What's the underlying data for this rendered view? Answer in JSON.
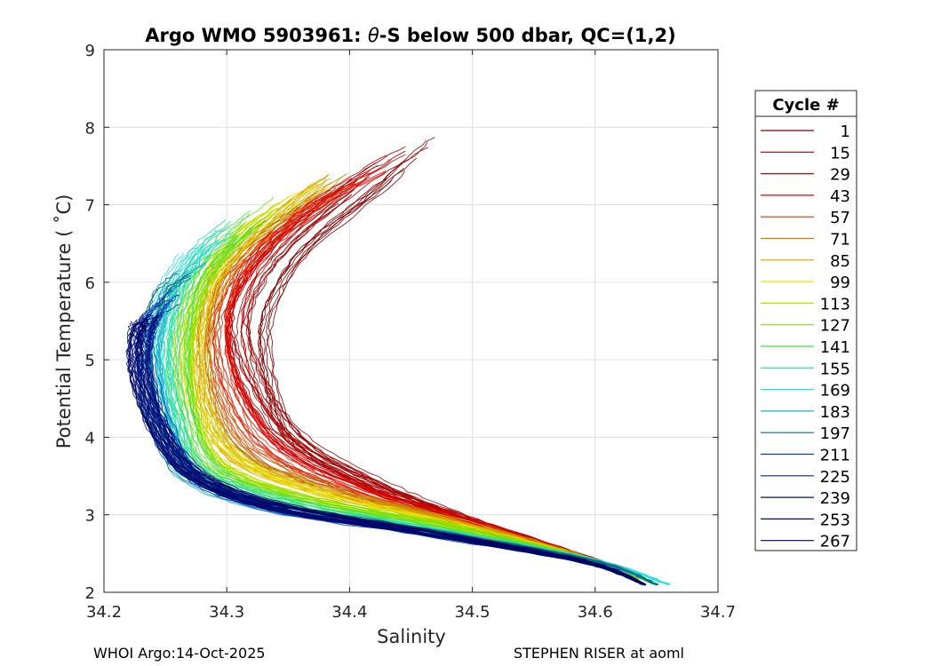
{
  "chart_data": {
    "type": "line",
    "title_prefix": "Argo WMO 5903961: ",
    "title_theta": "θ",
    "title_suffix": "-S below 500 dbar,  QC=(1,2)",
    "xlabel": "Salinity",
    "ylabel": "Potential Temperature ( ˚C)",
    "xlim": [
      34.2,
      34.7
    ],
    "ylim": [
      2,
      9
    ],
    "xticks": [
      34.2,
      34.3,
      34.4,
      34.5,
      34.6,
      34.7
    ],
    "xtick_labels": [
      "34.2",
      "34.3",
      "34.4",
      "34.5",
      "34.6",
      "34.7"
    ],
    "yticks": [
      2,
      3,
      4,
      5,
      6,
      7,
      8,
      9
    ],
    "ytick_labels": [
      "2",
      "3",
      "4",
      "5",
      "6",
      "7",
      "8",
      "9"
    ],
    "grid": true,
    "legend": {
      "title": "Cycle #",
      "placement": "outside-right",
      "entries": [
        {
          "label": "1",
          "color": "#800000"
        },
        {
          "label": "15",
          "color": "#a00000"
        },
        {
          "label": "29",
          "color": "#c00000"
        },
        {
          "label": "43",
          "color": "#e00000"
        },
        {
          "label": "57",
          "color": "#e03000"
        },
        {
          "label": "71",
          "color": "#c08000"
        },
        {
          "label": "85",
          "color": "#d8a000"
        },
        {
          "label": "99",
          "color": "#e8e000"
        },
        {
          "label": "113",
          "color": "#c0e000"
        },
        {
          "label": "127",
          "color": "#80e000"
        },
        {
          "label": "141",
          "color": "#40e040"
        },
        {
          "label": "155",
          "color": "#20e0a0"
        },
        {
          "label": "169",
          "color": "#20e0e0"
        },
        {
          "label": "183",
          "color": "#20b0d0"
        },
        {
          "label": "197",
          "color": "#007080"
        },
        {
          "label": "211",
          "color": "#0040c0"
        },
        {
          "label": "225",
          "color": "#0020a0"
        },
        {
          "label": "239",
          "color": "#001080"
        },
        {
          "label": "253",
          "color": "#001070"
        },
        {
          "label": "267",
          "color": "#000060"
        }
      ]
    },
    "series": [
      {
        "name": "1",
        "color": "#800000",
        "s": [
          34.64,
          34.59,
          34.49,
          34.41,
          34.35,
          34.33,
          34.33,
          34.36,
          34.42,
          34.47
        ],
        "t": [
          2.1,
          2.45,
          2.95,
          3.4,
          4.0,
          4.8,
          5.6,
          6.4,
          7.2,
          7.9
        ]
      },
      {
        "name": "15",
        "color": "#a00000",
        "s": [
          34.64,
          34.6,
          34.5,
          34.42,
          34.355,
          34.32,
          34.31,
          34.34,
          34.4,
          34.46
        ],
        "t": [
          2.1,
          2.4,
          2.9,
          3.4,
          4.0,
          4.8,
          5.6,
          6.4,
          7.2,
          7.8
        ]
      },
      {
        "name": "29",
        "color": "#c00000",
        "s": [
          34.64,
          34.6,
          34.5,
          34.42,
          34.35,
          34.315,
          34.305,
          34.33,
          34.38,
          34.44
        ],
        "t": [
          2.1,
          2.4,
          2.9,
          3.35,
          3.9,
          4.7,
          5.6,
          6.4,
          7.1,
          7.7
        ]
      },
      {
        "name": "43",
        "color": "#e00000",
        "s": [
          34.64,
          34.6,
          34.5,
          34.41,
          34.34,
          34.305,
          34.295,
          34.32,
          34.37,
          34.43
        ],
        "t": [
          2.1,
          2.4,
          2.9,
          3.3,
          3.85,
          4.6,
          5.5,
          6.3,
          7.0,
          7.5
        ]
      },
      {
        "name": "57",
        "color": "#e03000",
        "s": [
          34.64,
          34.6,
          34.49,
          34.4,
          34.33,
          34.3,
          34.29,
          34.31,
          34.36,
          34.41
        ],
        "t": [
          2.1,
          2.4,
          2.9,
          3.3,
          3.8,
          4.5,
          5.4,
          6.2,
          6.9,
          7.4
        ]
      },
      {
        "name": "71",
        "color": "#c08000",
        "s": [
          34.64,
          34.6,
          34.49,
          34.39,
          34.32,
          34.29,
          34.285,
          34.3,
          34.35,
          34.4
        ],
        "t": [
          2.1,
          2.4,
          2.9,
          3.3,
          3.75,
          4.5,
          5.4,
          6.2,
          6.9,
          7.45
        ]
      },
      {
        "name": "85",
        "color": "#d8a000",
        "s": [
          34.65,
          34.6,
          34.49,
          34.39,
          34.31,
          34.285,
          34.28,
          34.3,
          34.34,
          34.39
        ],
        "t": [
          2.1,
          2.4,
          2.9,
          3.25,
          3.7,
          4.4,
          5.3,
          6.1,
          6.8,
          7.4
        ]
      },
      {
        "name": "99",
        "color": "#e8e000",
        "s": [
          34.65,
          34.6,
          34.49,
          34.38,
          34.31,
          34.28,
          34.275,
          34.29,
          34.33,
          34.38
        ],
        "t": [
          2.1,
          2.4,
          2.85,
          3.25,
          3.7,
          4.4,
          5.3,
          6.1,
          6.8,
          7.3
        ]
      },
      {
        "name": "113",
        "color": "#c0e000",
        "s": [
          34.65,
          34.6,
          34.48,
          34.37,
          34.3,
          34.275,
          34.27,
          34.285,
          34.32,
          34.37
        ],
        "t": [
          2.1,
          2.4,
          2.85,
          3.2,
          3.65,
          4.35,
          5.2,
          6.0,
          6.7,
          7.2
        ]
      },
      {
        "name": "127",
        "color": "#80e000",
        "s": [
          34.65,
          34.6,
          34.48,
          34.36,
          34.29,
          34.27,
          34.265,
          34.28,
          34.31,
          34.35
        ],
        "t": [
          2.1,
          2.4,
          2.85,
          3.2,
          3.6,
          4.3,
          5.2,
          6.0,
          6.6,
          7.1
        ]
      },
      {
        "name": "141",
        "color": "#40e040",
        "s": [
          34.65,
          34.6,
          34.47,
          34.35,
          34.285,
          34.265,
          34.26,
          34.27,
          34.3,
          34.33
        ],
        "t": [
          2.1,
          2.4,
          2.8,
          3.15,
          3.6,
          4.3,
          5.1,
          5.9,
          6.5,
          6.9
        ]
      },
      {
        "name": "155",
        "color": "#20e0a0",
        "s": [
          34.65,
          34.6,
          34.47,
          34.35,
          34.28,
          34.26,
          34.25,
          34.26,
          34.28,
          34.31
        ],
        "t": [
          2.1,
          2.4,
          2.8,
          3.15,
          3.55,
          4.25,
          5.1,
          5.8,
          6.4,
          6.8
        ]
      },
      {
        "name": "169",
        "color": "#20e0e0",
        "s": [
          34.66,
          34.6,
          34.46,
          34.34,
          34.275,
          34.255,
          34.245,
          34.25,
          34.27,
          34.3
        ],
        "t": [
          2.1,
          2.4,
          2.8,
          3.1,
          3.5,
          4.2,
          5.0,
          5.7,
          6.3,
          6.6
        ]
      },
      {
        "name": "183",
        "color": "#20b0d0",
        "s": [
          34.65,
          34.6,
          34.46,
          34.34,
          34.27,
          34.25,
          34.24,
          34.245,
          34.26,
          34.28
        ],
        "t": [
          2.1,
          2.4,
          2.8,
          3.1,
          3.5,
          4.15,
          5.0,
          5.6,
          6.1,
          6.3
        ]
      },
      {
        "name": "197",
        "color": "#007080",
        "s": [
          34.65,
          34.6,
          34.46,
          34.34,
          34.27,
          34.245,
          34.235,
          34.24,
          34.25,
          34.27
        ],
        "t": [
          2.1,
          2.4,
          2.8,
          3.1,
          3.5,
          4.1,
          4.9,
          5.5,
          5.9,
          6.1
        ]
      },
      {
        "name": "211",
        "color": "#0040c0",
        "s": [
          34.64,
          34.59,
          34.45,
          34.34,
          34.275,
          34.25,
          34.235,
          34.235,
          34.245,
          34.26
        ],
        "t": [
          2.1,
          2.4,
          2.8,
          3.1,
          3.5,
          4.1,
          4.9,
          5.4,
          5.7,
          5.9
        ]
      },
      {
        "name": "225",
        "color": "#0020a0",
        "s": [
          34.64,
          34.59,
          34.45,
          34.34,
          34.275,
          34.245,
          34.232,
          34.232,
          34.24,
          34.255
        ],
        "t": [
          2.1,
          2.4,
          2.8,
          3.1,
          3.5,
          4.1,
          4.85,
          5.3,
          5.6,
          5.75
        ]
      },
      {
        "name": "239",
        "color": "#001080",
        "s": [
          34.64,
          34.59,
          34.45,
          34.34,
          34.275,
          34.245,
          34.23,
          34.23,
          34.235,
          34.25
        ],
        "t": [
          2.1,
          2.4,
          2.8,
          3.1,
          3.5,
          4.1,
          4.8,
          5.25,
          5.5,
          5.6
        ]
      },
      {
        "name": "253",
        "color": "#001070",
        "s": [
          34.64,
          34.59,
          34.45,
          34.34,
          34.275,
          34.245,
          34.23,
          34.228,
          34.232,
          34.24
        ],
        "t": [
          2.1,
          2.4,
          2.8,
          3.1,
          3.5,
          4.1,
          4.75,
          5.2,
          5.45,
          5.55
        ]
      },
      {
        "name": "267",
        "color": "#000060",
        "s": [
          34.64,
          34.59,
          34.45,
          34.34,
          34.275,
          34.245,
          34.23,
          34.228,
          34.232,
          34.24
        ],
        "t": [
          2.1,
          2.4,
          2.8,
          3.1,
          3.5,
          4.1,
          4.75,
          5.2,
          5.45,
          5.55
        ]
      }
    ]
  },
  "footer": {
    "left": "WHOI Argo:14-Oct-2025",
    "right": "STEPHEN RISER at aoml"
  }
}
